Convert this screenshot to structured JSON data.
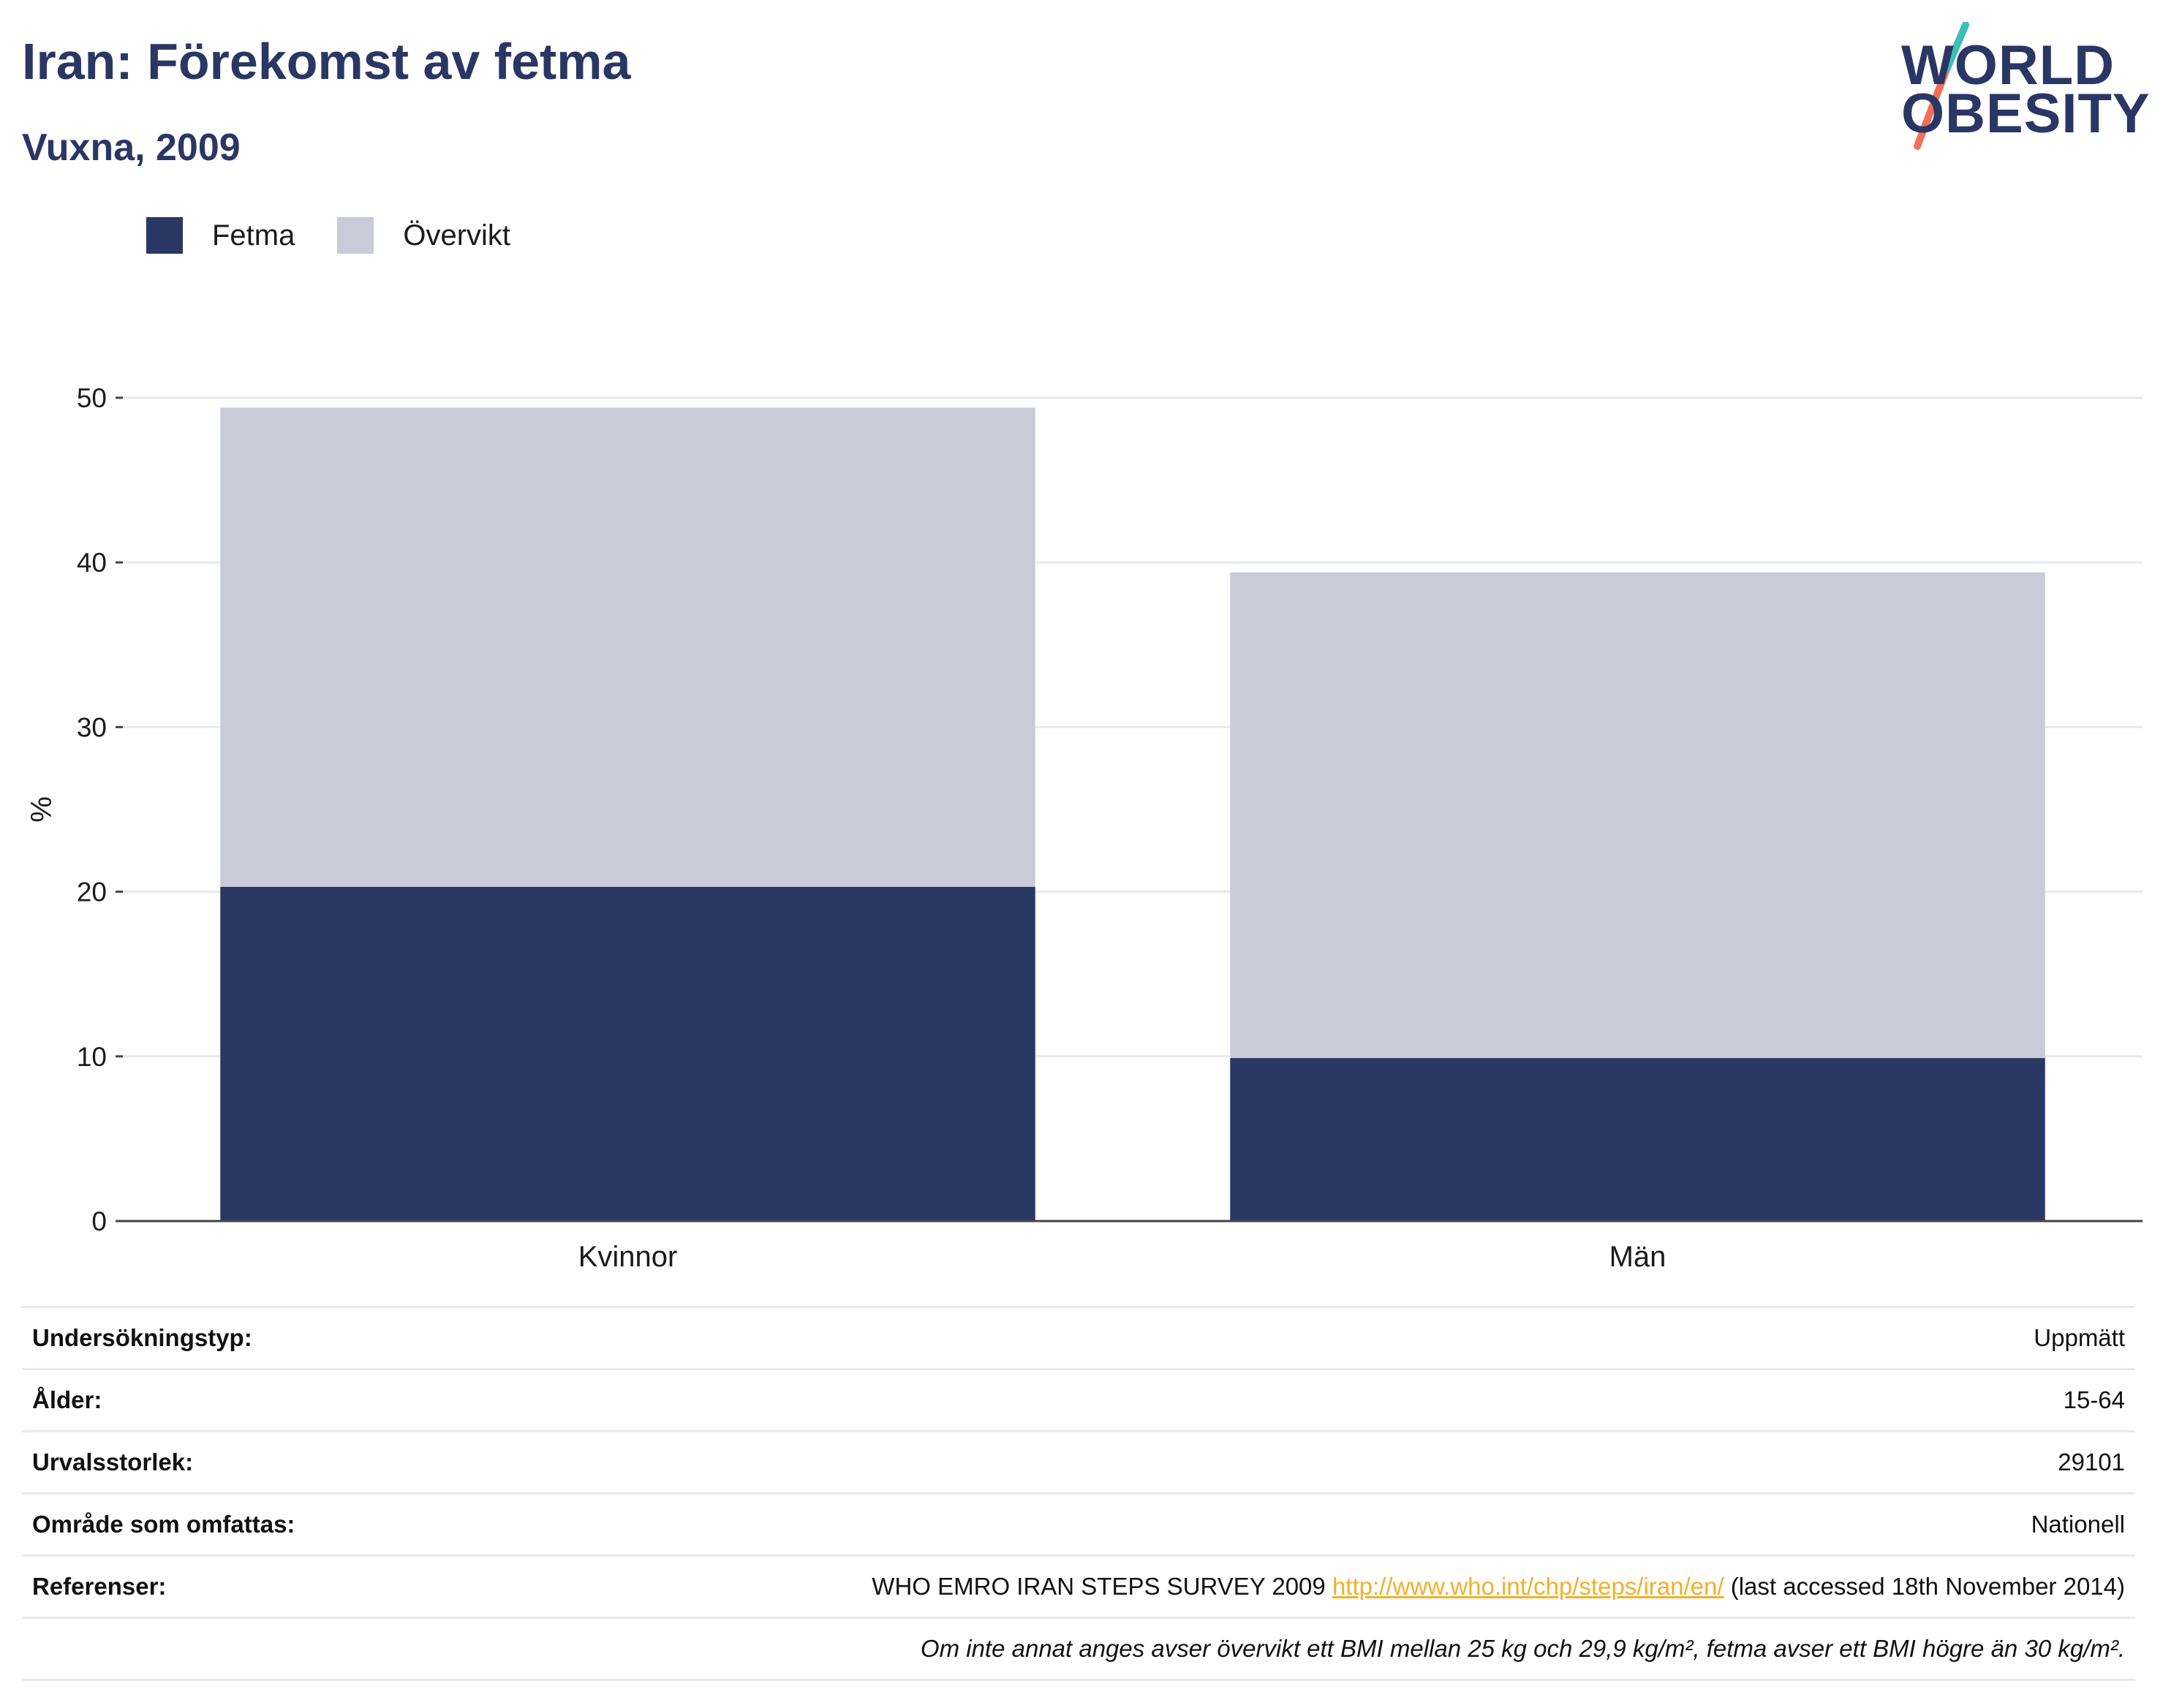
{
  "header": {
    "title": "Iran: Förekomst av fetma",
    "subtitle": "Vuxna, 2009"
  },
  "logo": {
    "line1": "WORLD",
    "line2": "OBESITY",
    "colors": {
      "text": "#2a3764",
      "slash_top": "#3bbfb6",
      "slash_bottom": "#ef6f5b"
    }
  },
  "legend": [
    {
      "label": "Fetma",
      "color": "#2a3764"
    },
    {
      "label": "Övervikt",
      "color": "#c9ccd8"
    }
  ],
  "chart_data": {
    "type": "bar",
    "stacked": true,
    "categories": [
      "Kvinnor",
      "Män"
    ],
    "series": [
      {
        "name": "Fetma",
        "values": [
          20.3,
          9.9
        ],
        "color": "#2a3764"
      },
      {
        "name": "Övervikt",
        "values": [
          29.1,
          29.5
        ],
        "color": "#c9ccd8"
      }
    ],
    "ylabel": "%",
    "ylim": [
      0,
      50
    ],
    "yticks": [
      0,
      10,
      20,
      30,
      40,
      50
    ],
    "grid": true
  },
  "meta": {
    "survey_type": {
      "label": "Undersökningstyp:",
      "value": "Uppmätt"
    },
    "age": {
      "label": "Ålder:",
      "value": "15-64"
    },
    "sample_size": {
      "label": "Urvalsstorlek:",
      "value": "29101"
    },
    "area": {
      "label": "Område som omfattas:",
      "value": "Nationell"
    },
    "references": {
      "label": "Referenser:",
      "text_before": "WHO EMRO IRAN STEPS SURVEY 2009 ",
      "link": "http://www.who.int/chp/steps/iran/en/",
      "text_after": " (last accessed 18th November 2014)"
    },
    "note": "Om inte annat anges avser övervikt ett BMI mellan 25 kg och 29,9 kg/m², fetma avser ett BMI högre än 30 kg/m²."
  }
}
